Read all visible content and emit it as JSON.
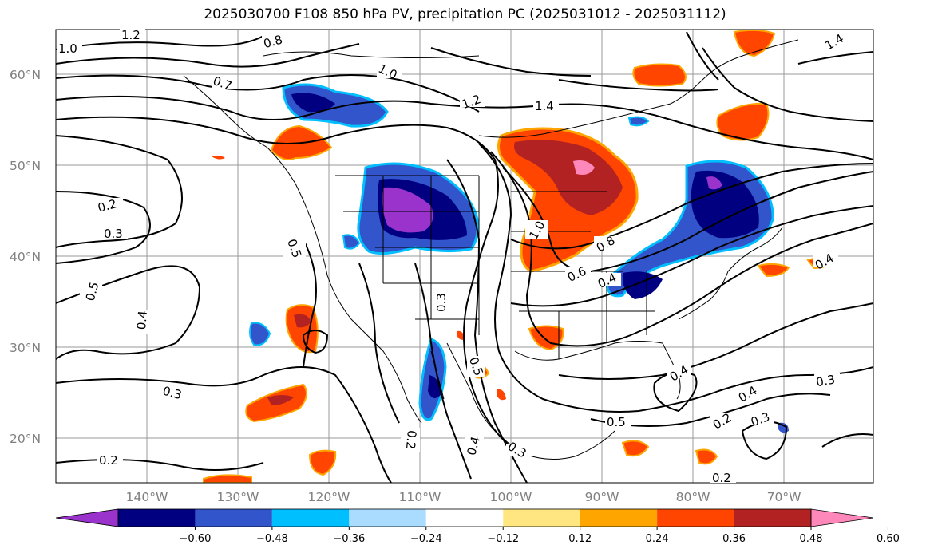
{
  "title": "2025030700 F108 850 hPa PV, precipitation PC (2025031012 - 2025031112)",
  "latitude_labels": [
    "60°N",
    "50°N",
    "40°N",
    "30°N",
    "20°N"
  ],
  "longitude_labels": [
    "140°W",
    "130°W",
    "120°W",
    "110°W",
    "100°W",
    "90°W",
    "80°W",
    "70°W"
  ],
  "contour_labels": [
    "1.2",
    "0.8",
    "1.0",
    "0.7",
    "1.0",
    "1.2",
    "1.4",
    "1.4",
    "0.2",
    "0.3",
    "0.5",
    "0.5",
    "0.4",
    "0.3",
    "0.2",
    "0.2",
    "0.3",
    "0.4",
    "1.0",
    "0.8",
    "0.6",
    "0.4",
    "0.3",
    "0.5",
    "0.4",
    "0.3",
    "0.5",
    "0.2",
    "0.3",
    "0.4",
    "0.4",
    "0.2"
  ],
  "colorbar": {
    "tick_labels": [
      "−0.60",
      "−0.48",
      "−0.36",
      "−0.24",
      "−0.12",
      "0.12",
      "0.24",
      "0.36",
      "0.48",
      "0.60"
    ],
    "colors": [
      "#9933cc",
      "#000080",
      "#3355cc",
      "#00bfff",
      "#aadcff",
      "#ffffff",
      "#ffe680",
      "#ffa500",
      "#ff4500",
      "#b22222",
      "#ff88bb"
    ]
  }
}
